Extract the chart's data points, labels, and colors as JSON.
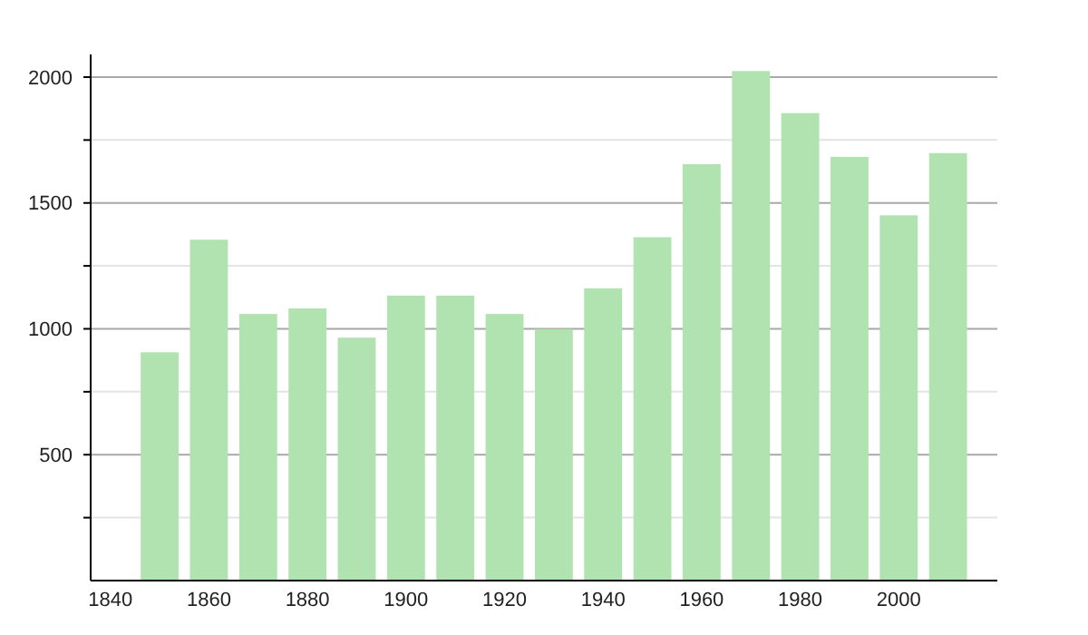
{
  "chart_data": {
    "type": "bar",
    "x": [
      1850,
      1860,
      1870,
      1880,
      1890,
      1900,
      1910,
      1920,
      1930,
      1940,
      1950,
      1960,
      1970,
      1980,
      1990,
      2000,
      2010
    ],
    "values": [
      907,
      1354,
      1059,
      1081,
      965,
      1132,
      1132,
      1059,
      999,
      1161,
      1364,
      1654,
      2024,
      1857,
      1683,
      1451,
      1698
    ],
    "color": "#b1e3b1",
    "xlim": [
      1836,
      2020
    ],
    "xticks": [
      1840,
      1860,
      1880,
      1900,
      1920,
      1940,
      1960,
      1980,
      2000
    ],
    "ylim": [
      0,
      2090
    ],
    "yticks": [
      {
        "value": 250,
        "label": null
      },
      500,
      {
        "value": 750,
        "label": null
      },
      1000,
      {
        "value": 1250,
        "label": null
      },
      1500,
      {
        "value": 1750,
        "label": null
      },
      2000
    ],
    "grid": "y"
  }
}
